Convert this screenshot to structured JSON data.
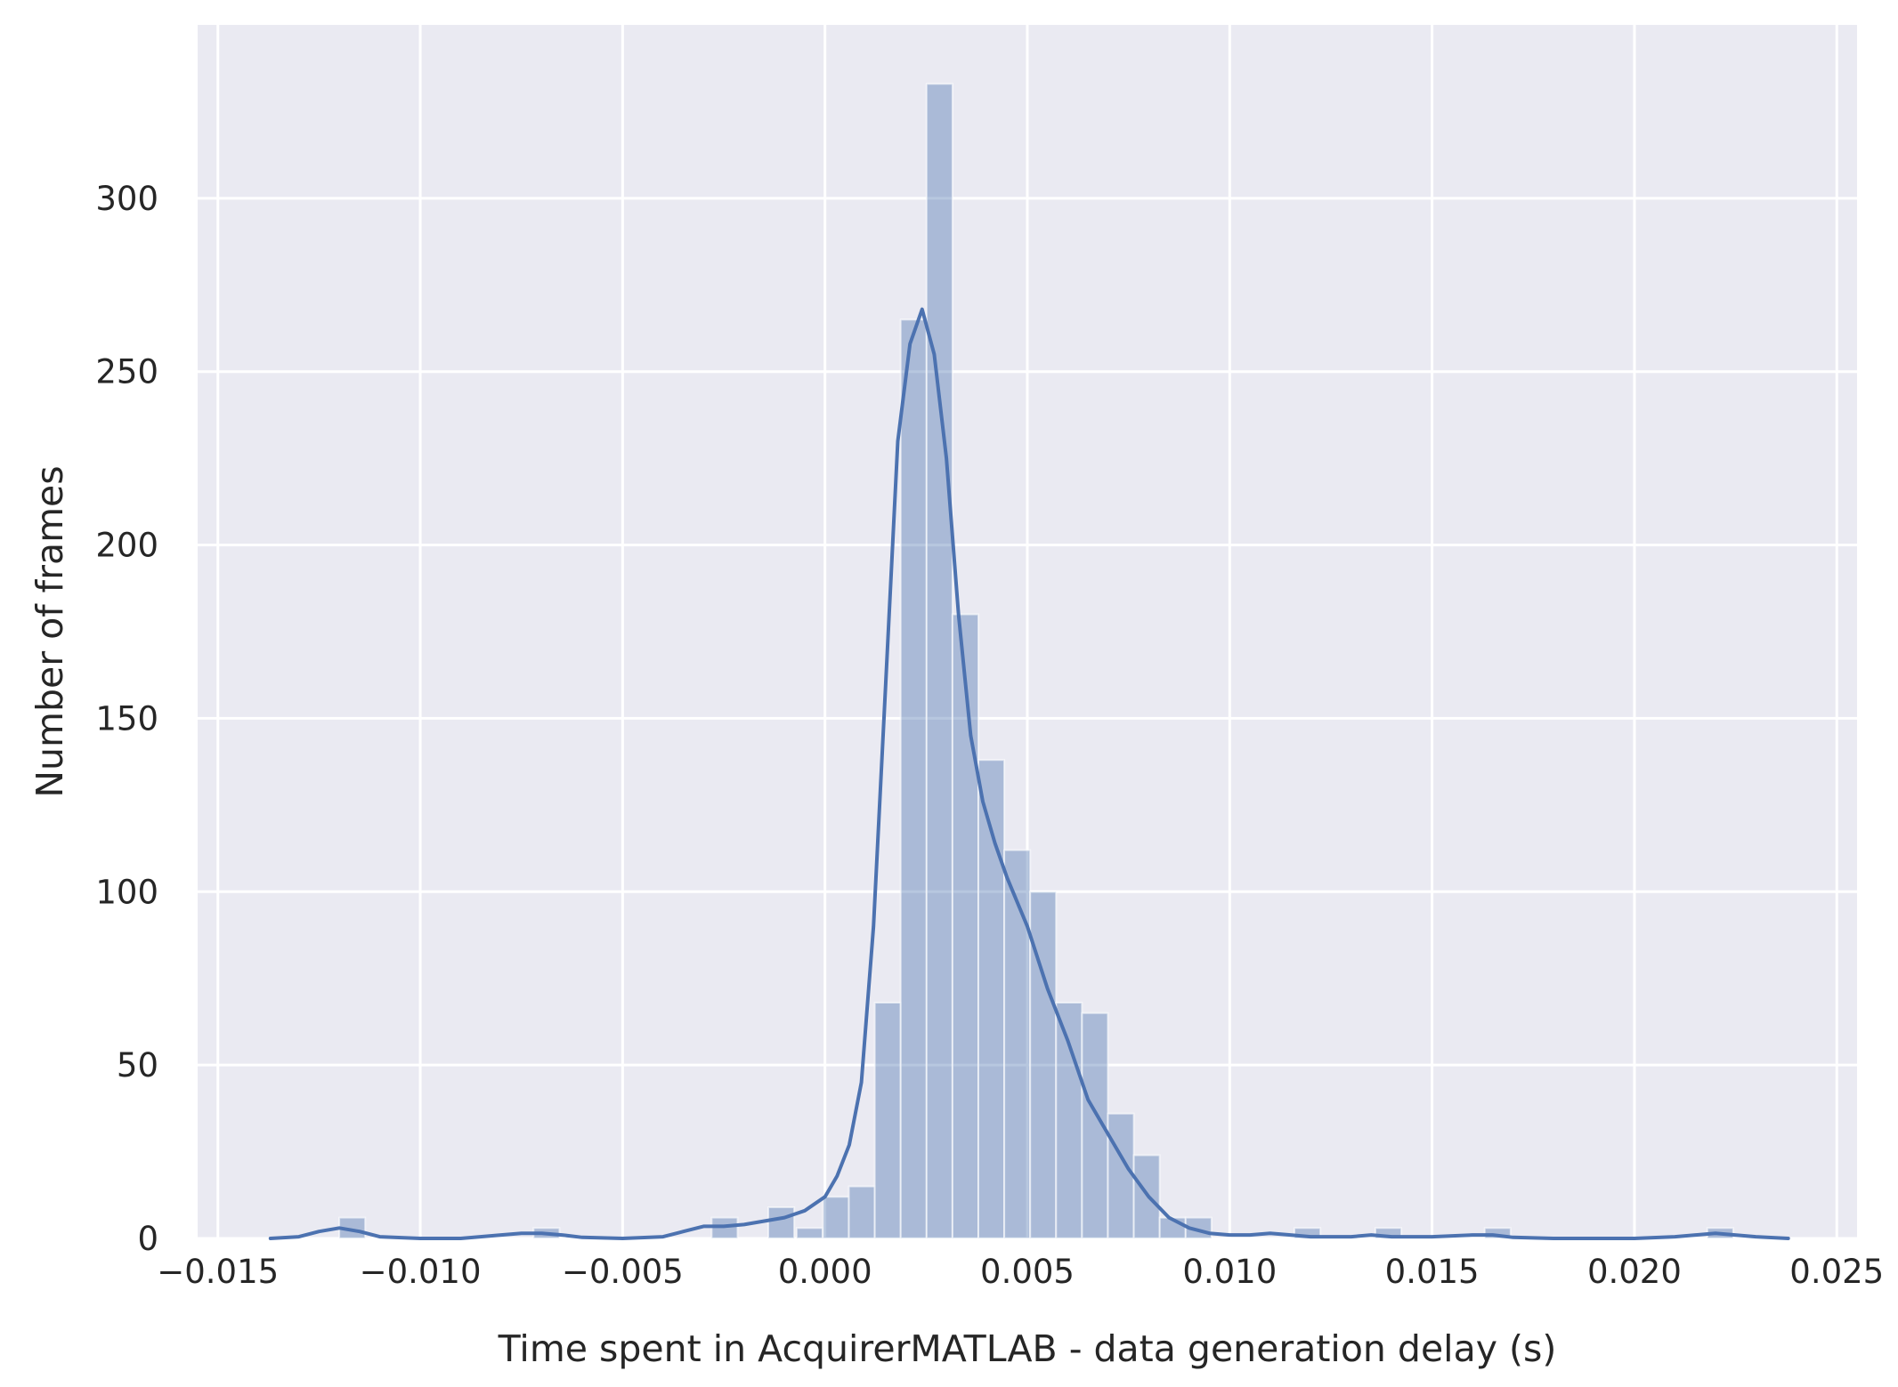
{
  "chart_data": {
    "type": "bar",
    "title": "",
    "xlabel": "Time spent in AcquirerMATLAB - data generation delay (s)",
    "ylabel": "Number of frames",
    "xlim": [
      -0.0155,
      0.0255
    ],
    "ylim": [
      0,
      350
    ],
    "xticks": [
      -0.015,
      -0.01,
      -0.005,
      0.0,
      0.005,
      0.01,
      0.015,
      0.02,
      0.025
    ],
    "xtick_labels": [
      "−0.015",
      "−0.010",
      "−0.005",
      "0.000",
      "0.005",
      "0.010",
      "0.015",
      "0.020",
      "0.025"
    ],
    "yticks": [
      0,
      50,
      100,
      150,
      200,
      250,
      300
    ],
    "ytick_labels": [
      "0",
      "50",
      "100",
      "150",
      "200",
      "250",
      "300"
    ],
    "grid": true,
    "legend": "none",
    "colors": {
      "background": "#eaeaf2",
      "grid": "#ffffff",
      "bar_fill": "#4c72b0",
      "bar_opacity": 0.4,
      "kde_line": "#4c72b0"
    },
    "histogram": {
      "bin_width": 0.00064,
      "bars": [
        {
          "x0": -0.012,
          "count": 6
        },
        {
          "x0": -0.0072,
          "count": 3
        },
        {
          "x0": -0.0028,
          "count": 6
        },
        {
          "x0": -0.0014,
          "count": 9
        },
        {
          "x0": -0.0007,
          "count": 3
        },
        {
          "x0": -5e-05,
          "count": 12
        },
        {
          "x0": 0.00059,
          "count": 15
        },
        {
          "x0": 0.00123,
          "count": 68
        },
        {
          "x0": 0.00187,
          "count": 265
        },
        {
          "x0": 0.00251,
          "count": 333
        },
        {
          "x0": 0.00315,
          "count": 180
        },
        {
          "x0": 0.00379,
          "count": 138
        },
        {
          "x0": 0.00443,
          "count": 112
        },
        {
          "x0": 0.00507,
          "count": 100
        },
        {
          "x0": 0.00571,
          "count": 68
        },
        {
          "x0": 0.00635,
          "count": 65
        },
        {
          "x0": 0.00699,
          "count": 36
        },
        {
          "x0": 0.00763,
          "count": 24
        },
        {
          "x0": 0.00827,
          "count": 6
        },
        {
          "x0": 0.00891,
          "count": 6
        },
        {
          "x0": 0.0116,
          "count": 3
        },
        {
          "x0": 0.0136,
          "count": 3
        },
        {
          "x0": 0.0163,
          "count": 3
        },
        {
          "x0": 0.0218,
          "count": 3
        }
      ]
    },
    "kde": {
      "x": [
        -0.0137,
        -0.013,
        -0.0125,
        -0.012,
        -0.0115,
        -0.011,
        -0.01,
        -0.009,
        -0.008,
        -0.0075,
        -0.007,
        -0.0065,
        -0.006,
        -0.005,
        -0.004,
        -0.0035,
        -0.003,
        -0.0025,
        -0.002,
        -0.0015,
        -0.001,
        -0.0005,
        0.0,
        0.0003,
        0.0006,
        0.0009,
        0.0012,
        0.0015,
        0.0018,
        0.0021,
        0.0024,
        0.0027,
        0.003,
        0.0033,
        0.0036,
        0.0039,
        0.0042,
        0.0045,
        0.005,
        0.0055,
        0.006,
        0.0065,
        0.007,
        0.0075,
        0.008,
        0.0085,
        0.009,
        0.0095,
        0.01,
        0.0105,
        0.011,
        0.0115,
        0.012,
        0.013,
        0.0135,
        0.014,
        0.015,
        0.016,
        0.0165,
        0.017,
        0.018,
        0.02,
        0.021,
        0.022,
        0.023,
        0.0238
      ],
      "y": [
        0,
        0.5,
        2,
        3,
        2,
        0.5,
        0,
        0,
        1,
        1.5,
        1.5,
        1,
        0.3,
        0,
        0.5,
        2,
        3.5,
        3.5,
        4,
        5,
        6,
        8,
        12,
        18,
        27,
        45,
        90,
        160,
        230,
        258,
        268,
        255,
        225,
        180,
        145,
        126,
        114,
        104,
        90,
        72,
        57,
        40,
        30,
        20,
        12,
        6,
        3,
        1.5,
        1,
        1,
        1.5,
        1,
        0.5,
        0.5,
        1,
        0.5,
        0.5,
        1,
        1,
        0.3,
        0,
        0,
        0.5,
        1.5,
        0.5,
        0
      ]
    }
  }
}
